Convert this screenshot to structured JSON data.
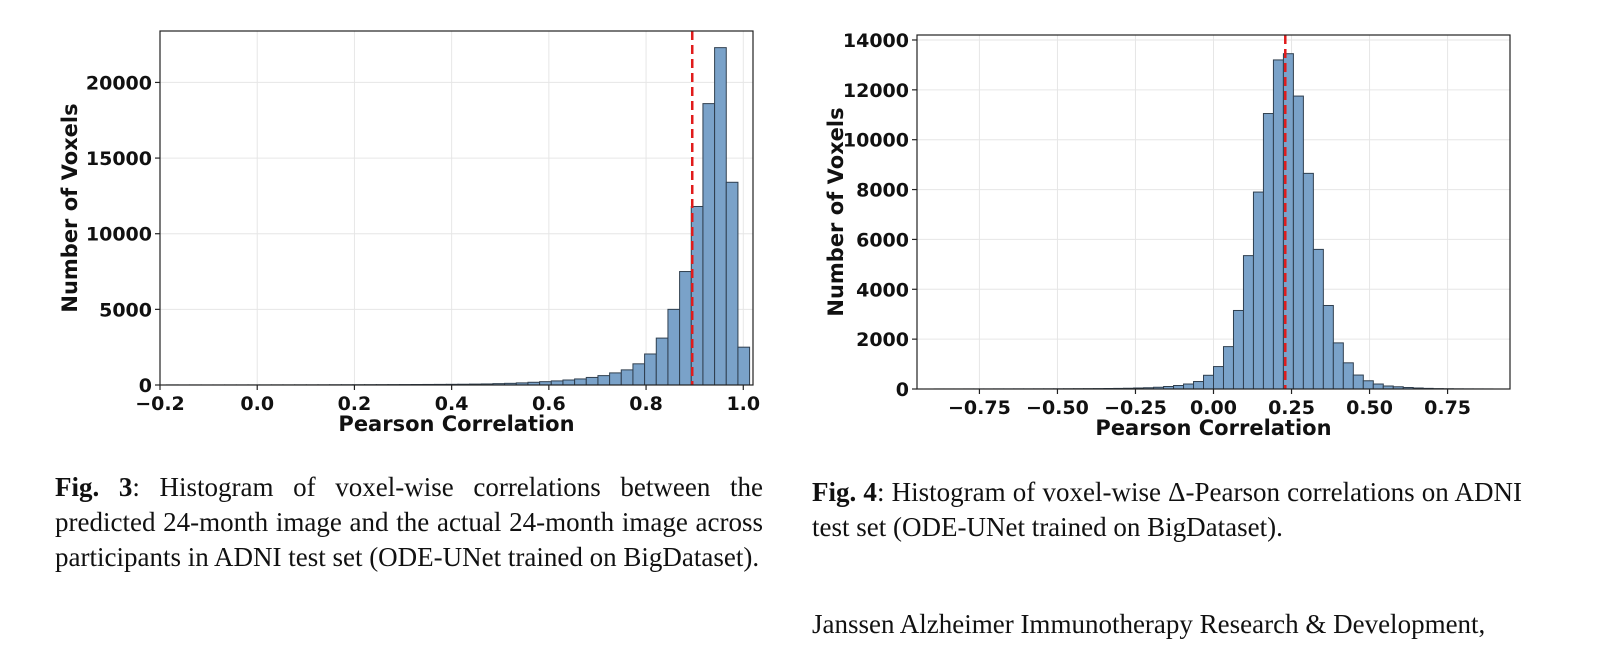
{
  "chart_data": [
    {
      "id": "fig3",
      "type": "bar",
      "title": "",
      "xlabel": "Pearson Correlation",
      "ylabel": "Number of Voxels",
      "xlim": [
        -0.2,
        1.02
      ],
      "ylim": [
        0,
        23400
      ],
      "xticks": [
        -0.2,
        0.0,
        0.2,
        0.4,
        0.6,
        0.8,
        1.0
      ],
      "xtick_labels": [
        "−0.2",
        "0.0",
        "0.2",
        "0.4",
        "0.6",
        "0.8",
        "1.0"
      ],
      "yticks": [
        0,
        5000,
        10000,
        15000,
        20000
      ],
      "ytick_labels": [
        "0",
        "5000",
        "10000",
        "15000",
        "20000"
      ],
      "grid": true,
      "bar_color": "#7aa2c9",
      "edge_color": "#2f3f4f",
      "reference_line": {
        "x": 0.895,
        "color": "#e01b1b",
        "style": "dashed"
      },
      "bins": [
        -0.175,
        -0.151,
        -0.127,
        -0.103,
        -0.079,
        -0.055,
        -0.031,
        -0.007,
        0.017,
        0.041,
        0.065,
        0.089,
        0.113,
        0.137,
        0.161,
        0.185,
        0.209,
        0.233,
        0.257,
        0.281,
        0.305,
        0.329,
        0.353,
        0.377,
        0.401,
        0.425,
        0.449,
        0.473,
        0.497,
        0.521,
        0.545,
        0.569,
        0.593,
        0.617,
        0.641,
        0.665,
        0.689,
        0.713,
        0.737,
        0.761,
        0.785,
        0.809,
        0.833,
        0.857,
        0.881,
        0.905,
        0.929,
        0.953,
        0.977,
        1.001
      ],
      "values": [
        5,
        3,
        4,
        3,
        4,
        5,
        5,
        6,
        6,
        8,
        8,
        10,
        10,
        12,
        14,
        16,
        18,
        20,
        22,
        25,
        28,
        32,
        36,
        40,
        45,
        50,
        60,
        70,
        90,
        110,
        140,
        180,
        220,
        270,
        330,
        400,
        500,
        620,
        800,
        1000,
        1400,
        2050,
        3100,
        5000,
        7500,
        11800,
        18600,
        22300,
        13400,
        2500
      ]
    },
    {
      "id": "fig4",
      "type": "bar",
      "title": "",
      "xlabel": "Pearson Correlation",
      "ylabel": "Number of Voxels",
      "xlim": [
        -0.95,
        0.95
      ],
      "ylim": [
        0,
        14200
      ],
      "xticks": [
        -0.75,
        -0.5,
        -0.25,
        0.0,
        0.25,
        0.5,
        0.75
      ],
      "xtick_labels": [
        "−0.75",
        "−0.50",
        "−0.25",
        "0.00",
        "0.25",
        "0.50",
        "0.75"
      ],
      "yticks": [
        0,
        2000,
        4000,
        6000,
        8000,
        10000,
        12000,
        14000
      ],
      "ytick_labels": [
        "0",
        "2000",
        "4000",
        "6000",
        "8000",
        "10000",
        "12000",
        "14000"
      ],
      "grid": true,
      "bar_color": "#7aa2c9",
      "edge_color": "#2f3f4f",
      "reference_line": {
        "x": 0.23,
        "color": "#e01b1b",
        "style": "dashed"
      },
      "bins": [
        -0.88,
        -0.848,
        -0.816,
        -0.784,
        -0.752,
        -0.72,
        -0.688,
        -0.656,
        -0.624,
        -0.592,
        -0.56,
        -0.528,
        -0.496,
        -0.464,
        -0.432,
        -0.4,
        -0.368,
        -0.336,
        -0.304,
        -0.272,
        -0.24,
        -0.208,
        -0.176,
        -0.144,
        -0.112,
        -0.08,
        -0.048,
        -0.016,
        0.016,
        0.048,
        0.08,
        0.112,
        0.144,
        0.176,
        0.208,
        0.24,
        0.272,
        0.304,
        0.336,
        0.368,
        0.4,
        0.432,
        0.464,
        0.496,
        0.528,
        0.56,
        0.592,
        0.624,
        0.656,
        0.688,
        0.72,
        0.752,
        0.784,
        0.816,
        0.848,
        0.88
      ],
      "values": [
        2,
        2,
        2,
        3,
        3,
        3,
        4,
        4,
        5,
        5,
        6,
        7,
        8,
        10,
        12,
        14,
        16,
        20,
        24,
        30,
        40,
        50,
        70,
        100,
        140,
        200,
        300,
        550,
        900,
        1700,
        3150,
        5350,
        7900,
        11050,
        13200,
        13450,
        11750,
        8650,
        5600,
        3350,
        1850,
        1050,
        560,
        330,
        200,
        120,
        90,
        60,
        40,
        25,
        15,
        10,
        6,
        4,
        3,
        2
      ]
    }
  ],
  "captions": {
    "fig3_label": "Fig. 3",
    "fig3_text": ": Histogram of voxel-wise correlations between the predicted 24-month image and the actual 24-month image across participants in ADNI test set (ODE-UNet trained on BigDataset).",
    "fig4_label": "Fig. 4",
    "fig4_text": ": Histogram of voxel-wise Δ-Pearson correlations on ADNI test set (ODE-UNet trained on BigDataset).",
    "affiliation": "Janssen Alzheimer Immunotherapy Research & Development,"
  }
}
